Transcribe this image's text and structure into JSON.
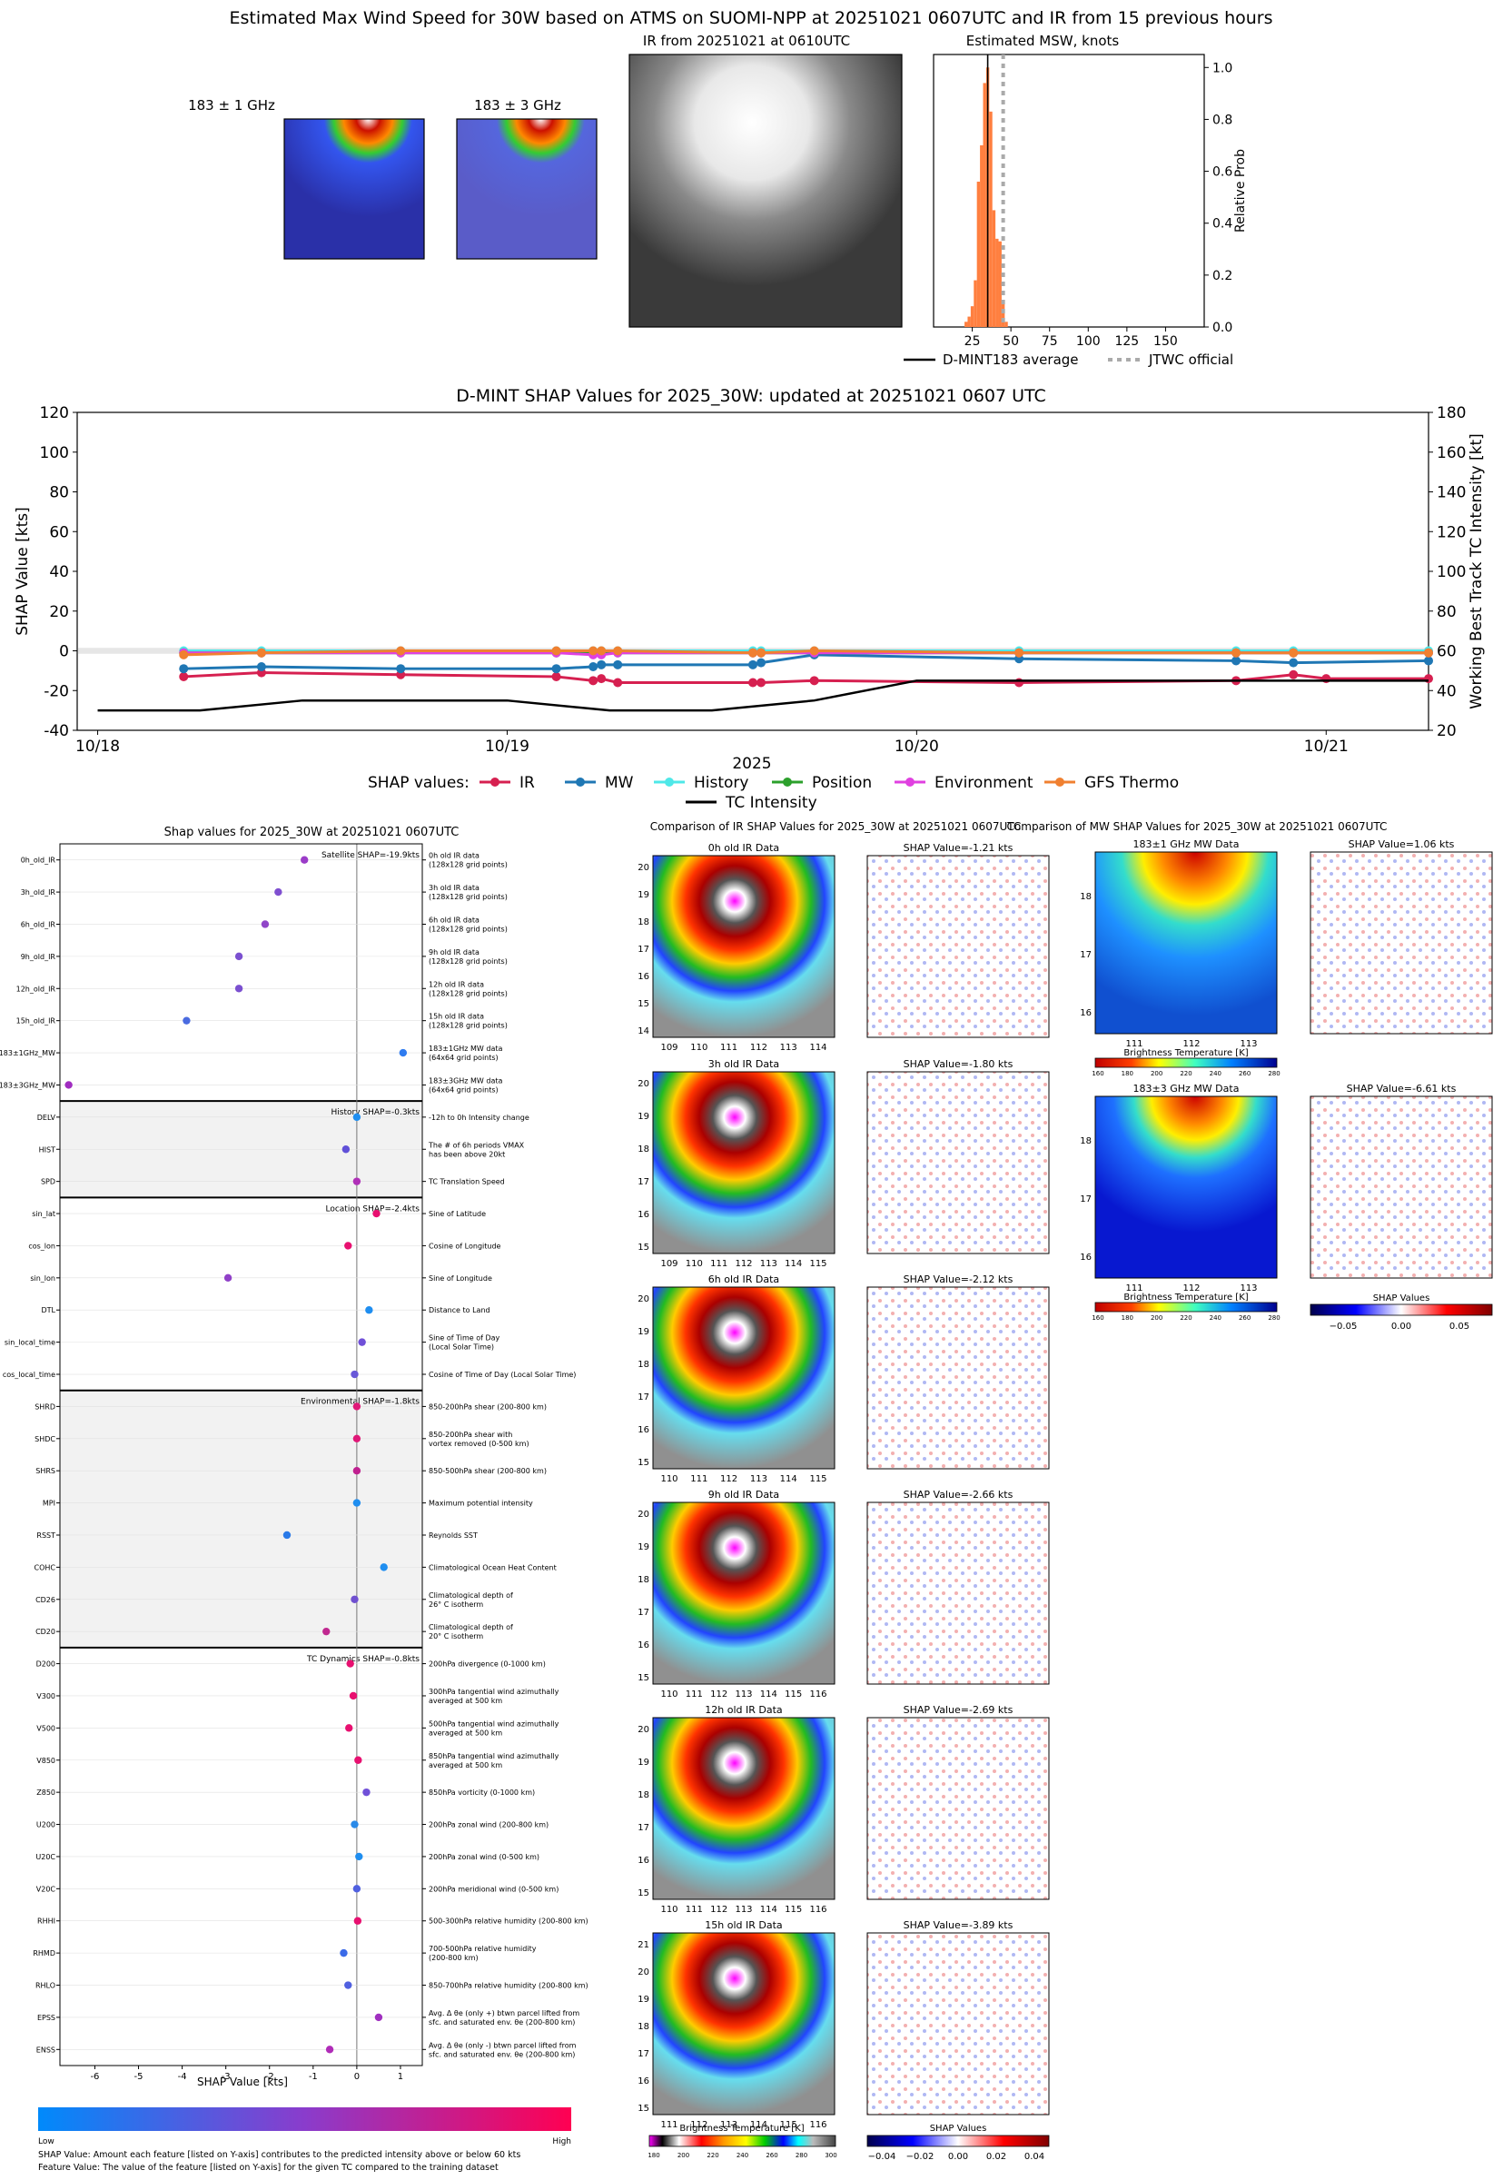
{
  "top": {
    "main_title": "Estimated Max Wind Speed for 30W based on ATMS on SUOMI-NPP at 20251021 0607UTC and IR from 15 previous hours",
    "mw1_title": "183 ± 1 GHz",
    "mw3_title": "183 ± 3 GHz",
    "ir_title": "IR from 20251021 at 0610UTC",
    "hist_title": "Estimated MSW, knots",
    "hist_ylabel": "Relative Prob",
    "legend": [
      "D-MINT183 average",
      "JTWC official"
    ],
    "colors": {
      "hist": "#ff7f3f",
      "avg": "#000000",
      "jtwc": "#aaaaaa"
    }
  },
  "timeline": {
    "title": "D-MINT SHAP Values for 2025_30W: updated at 20251021 0607 UTC",
    "ylabel_left": "SHAP Value [kts]",
    "ylabel_right": "Working Best Track TC Intensity [kt]",
    "xlabel": "2025",
    "legend_title": "SHAP values:",
    "colors": {
      "IR": "#d62050",
      "MW": "#1f77b4",
      "History": "#4ee8e8",
      "Position": "#2ca02c",
      "Environment": "#e040e0",
      "GFS Thermo": "#f08030",
      "TC Intensity": "#000000"
    }
  },
  "shap_panel": {
    "title": "Shap values for 2025_30W at 20251021 0607UTC",
    "xlabel": "SHAP Value [kts]",
    "groups": [
      {
        "label": "Satellite SHAP=-19.9kts"
      },
      {
        "label": "History SHAP=-0.3kts"
      },
      {
        "label": "Location SHAP=-2.4kts"
      },
      {
        "label": "Environmental SHAP=-1.8kts"
      },
      {
        "label": "TC Dynamics SHAP=-0.8kts"
      }
    ],
    "features": [
      {
        "name": "0h_old_IR",
        "desc": [
          "0h old IR data",
          "(128x128 grid points)"
        ],
        "value": -1.2,
        "color": "#9b3cc8"
      },
      {
        "name": "3h_old_IR",
        "desc": [
          "3h old IR data",
          "(128x128 grid points)"
        ],
        "value": -1.8,
        "color": "#7f4fd0"
      },
      {
        "name": "6h_old_IR",
        "desc": [
          "6h old IR data",
          "(128x128 grid points)"
        ],
        "value": -2.1,
        "color": "#9045c8"
      },
      {
        "name": "9h_old_IR",
        "desc": [
          "9h old IR data",
          "(128x128 grid points)"
        ],
        "value": -2.7,
        "color": "#7b50d0"
      },
      {
        "name": "12h_old_IR",
        "desc": [
          "12h old IR data",
          "(128x128 grid points)"
        ],
        "value": -2.7,
        "color": "#7b50d0"
      },
      {
        "name": "15h_old_IR",
        "desc": [
          "15h old IR data",
          "(128x128 grid points)"
        ],
        "value": -3.9,
        "color": "#4a6be0"
      },
      {
        "name": "183±1GHz_MW",
        "desc": [
          "183±1GHz MW data",
          "(64x64 grid points)"
        ],
        "value": 1.06,
        "color": "#2f7cf0"
      },
      {
        "name": "183±3GHz_MW",
        "desc": [
          "183±3GHz MW data",
          "(64x64 grid points)"
        ],
        "value": -6.6,
        "color": "#a02cc0"
      },
      {
        "name": "DELV",
        "desc": [
          "-12h to 0h Intensity change"
        ],
        "value": 0.0,
        "color": "#1f8ef0"
      },
      {
        "name": "HIST",
        "desc": [
          "The # of 6h periods VMAX",
          "has been above 20kt"
        ],
        "value": -0.25,
        "color": "#6050d8"
      },
      {
        "name": "SPD",
        "desc": [
          "TC Translation Speed"
        ],
        "value": 0.0,
        "color": "#b030b8"
      },
      {
        "name": "sin_lat",
        "desc": [
          "Sine of Latitude"
        ],
        "value": 0.45,
        "color": "#e81070"
      },
      {
        "name": "cos_lon",
        "desc": [
          "Cosine of Longitude"
        ],
        "value": -0.2,
        "color": "#e81070"
      },
      {
        "name": "sin_lon",
        "desc": [
          "Sine of Longitude"
        ],
        "value": -2.95,
        "color": "#9040c8"
      },
      {
        "name": "DTL",
        "desc": [
          "Distance to Land"
        ],
        "value": 0.28,
        "color": "#1f8ef0"
      },
      {
        "name": "sin_local_time",
        "desc": [
          "Sine of Time of Day",
          "(Local Solar Time)"
        ],
        "value": 0.12,
        "color": "#7050d8"
      },
      {
        "name": "cos_local_time",
        "desc": [
          "Cosine of Time of Day (Local Solar Time)"
        ],
        "value": -0.05,
        "color": "#6858d8"
      },
      {
        "name": "SHRD",
        "desc": [
          "850-200hPa shear (200-800 km)"
        ],
        "value": 0.0,
        "color": "#e01878"
      },
      {
        "name": "SHDC",
        "desc": [
          "850-200hPa shear with",
          "vortex removed (0-500 km)"
        ],
        "value": 0.0,
        "color": "#e01878"
      },
      {
        "name": "SHRS",
        "desc": [
          "850-500hPa shear (200-800 km)"
        ],
        "value": 0.0,
        "color": "#c02090"
      },
      {
        "name": "MPI",
        "desc": [
          "Maximum potential intensity"
        ],
        "value": 0.0,
        "color": "#1f8ef0"
      },
      {
        "name": "RSST",
        "desc": [
          "Reynolds SST"
        ],
        "value": -1.6,
        "color": "#2a7ae8"
      },
      {
        "name": "COHC",
        "desc": [
          "Climatological Ocean Heat Content"
        ],
        "value": 0.62,
        "color": "#1f8ef0"
      },
      {
        "name": "CD26",
        "desc": [
          "Climatological depth of",
          "26° C isotherm"
        ],
        "value": -0.05,
        "color": "#7050d0"
      },
      {
        "name": "CD20",
        "desc": [
          "Climatological depth of",
          "20° C isotherm"
        ],
        "value": -0.7,
        "color": "#c02890"
      },
      {
        "name": "D200",
        "desc": [
          "200hPa divergence (0-1000 km)"
        ],
        "value": -0.15,
        "color": "#e81070"
      },
      {
        "name": "V300",
        "desc": [
          "300hPa tangential wind azimuthally",
          "averaged at 500 km"
        ],
        "value": -0.08,
        "color": "#e81070"
      },
      {
        "name": "V500",
        "desc": [
          "500hPa tangential wind azimuthally",
          "averaged at 500 km"
        ],
        "value": -0.18,
        "color": "#e81070"
      },
      {
        "name": "V850",
        "desc": [
          "850hPa tangential wind azimuthally",
          "averaged at 500 km"
        ],
        "value": 0.03,
        "color": "#e81070"
      },
      {
        "name": "Z850",
        "desc": [
          "850hPa vorticity (0-1000 km)"
        ],
        "value": 0.22,
        "color": "#7050d8"
      },
      {
        "name": "U200",
        "desc": [
          "200hPa zonal wind (200-800 km)"
        ],
        "value": -0.05,
        "color": "#2a8ae8"
      },
      {
        "name": "U20C",
        "desc": [
          "200hPa zonal wind (0-500 km)"
        ],
        "value": 0.05,
        "color": "#1f8ef0"
      },
      {
        "name": "V20C",
        "desc": [
          "200hPa meridional wind (0-500 km)"
        ],
        "value": 0.0,
        "color": "#5060e0"
      },
      {
        "name": "RHHI",
        "desc": [
          "500-300hPa relative humidity (200-800 km)"
        ],
        "value": 0.02,
        "color": "#e81070"
      },
      {
        "name": "RHMD",
        "desc": [
          "700-500hPa relative humidity",
          "(200-800 km)"
        ],
        "value": -0.3,
        "color": "#3a6ae8"
      },
      {
        "name": "RHLO",
        "desc": [
          "850-700hPa relative humidity (200-800 km)"
        ],
        "value": -0.2,
        "color": "#5060e0"
      },
      {
        "name": "EPSS",
        "desc": [
          "Avg. Δ θe (only +) btwn parcel lifted from",
          "sfc. and saturated env. θe (200-800 km)"
        ],
        "value": 0.5,
        "color": "#a030c0"
      },
      {
        "name": "ENSS",
        "desc": [
          "Avg. Δ θe (only -) btwn parcel lifted from",
          "sfc. and saturated env. θe (200-800 km)"
        ],
        "value": -0.62,
        "color": "#b02cb8"
      }
    ],
    "cbar_low": "Low",
    "cbar_high": "High",
    "footnote1": "SHAP Value: Amount each feature [listed on Y-axis] contributes to the predicted intensity above or below 60 kts",
    "footnote2": "Feature Value: The value of the feature [listed on Y-axis] for the given TC compared to the training dataset"
  },
  "ir_compare": {
    "title": "Comparison of IR SHAP Values for 2025_30W at 20251021 0607UTC",
    "rows": [
      {
        "data_title": "0h old IR Data",
        "shap_title": "SHAP Value=-1.21 kts",
        "yticks": [
          "20",
          "19",
          "18",
          "17",
          "16",
          "15",
          "14"
        ],
        "xticks": [
          "109",
          "110",
          "111",
          "112",
          "113",
          "114"
        ]
      },
      {
        "data_title": "3h old IR Data",
        "shap_title": "SHAP Value=-1.80 kts",
        "yticks": [
          "20",
          "19",
          "18",
          "17",
          "16",
          "15"
        ],
        "xticks": [
          "109",
          "110",
          "111",
          "112",
          "113",
          "114",
          "115"
        ]
      },
      {
        "data_title": "6h old IR Data",
        "shap_title": "SHAP Value=-2.12 kts",
        "yticks": [
          "20",
          "19",
          "18",
          "17",
          "16",
          "15"
        ],
        "xticks": [
          "110",
          "111",
          "112",
          "113",
          "114",
          "115"
        ]
      },
      {
        "data_title": "9h old IR Data",
        "shap_title": "SHAP Value=-2.66 kts",
        "yticks": [
          "20",
          "19",
          "18",
          "17",
          "16",
          "15"
        ],
        "xticks": [
          "110",
          "111",
          "112",
          "113",
          "114",
          "115",
          "116"
        ]
      },
      {
        "data_title": "12h old IR Data",
        "shap_title": "SHAP Value=-2.69 kts",
        "yticks": [
          "20",
          "19",
          "18",
          "17",
          "16",
          "15"
        ],
        "xticks": [
          "110",
          "111",
          "112",
          "113",
          "114",
          "115",
          "116"
        ]
      },
      {
        "data_title": "15h old IR Data",
        "shap_title": "SHAP Value=-3.89 kts",
        "yticks": [
          "21",
          "20",
          "19",
          "18",
          "17",
          "16",
          "15"
        ],
        "xticks": [
          "111",
          "112",
          "113",
          "114",
          "115",
          "116"
        ]
      }
    ],
    "cbar_label": "Brightness Temperature [K]",
    "cbar_ticks": [
      "180",
      "200",
      "220",
      "240",
      "260",
      "280",
      "300"
    ],
    "shap_cbar_label": "SHAP Values",
    "shap_cbar_ticks": [
      "−0.04",
      "−0.02",
      "0.00",
      "0.02",
      "0.04"
    ]
  },
  "mw_compare": {
    "title": "Comparison of MW SHAP Values for 2025_30W at 20251021 0607UTC",
    "rows": [
      {
        "data_title": "183±1 GHz MW Data",
        "shap_title": "SHAP Value=1.06 kts"
      },
      {
        "data_title": "183±3 GHz MW Data",
        "shap_title": "SHAP Value=-6.61 kts"
      }
    ],
    "yticks": [
      "18",
      "17",
      "16"
    ],
    "xticks": [
      "111",
      "112",
      "113"
    ],
    "cbar_label": "Brightness Temperature [K]",
    "cbar_ticks": [
      "160",
      "180",
      "200",
      "220",
      "240",
      "260",
      "280"
    ],
    "shap_cbar_label": "SHAP Values",
    "shap_cbar_ticks": [
      "−0.05",
      "0.00",
      "0.05"
    ]
  },
  "chart_data": [
    {
      "type": "bar",
      "title": "Estimated MSW, knots",
      "ylabel": "Relative Prob",
      "xlim": [
        0,
        175
      ],
      "ylim": [
        0,
        1.05
      ],
      "xticks": [
        25,
        50,
        75,
        100,
        125,
        150
      ],
      "yticks": [
        0.0,
        0.2,
        0.4,
        0.6,
        0.8,
        1.0
      ],
      "bins_x": [
        20,
        22,
        24,
        26,
        28,
        30,
        32,
        34,
        36,
        38,
        40,
        42,
        44,
        46
      ],
      "values": [
        0.02,
        0.04,
        0.08,
        0.18,
        0.56,
        0.7,
        0.94,
        1.0,
        0.83,
        0.45,
        0.34,
        0.33,
        0.1,
        0.02
      ],
      "avg_line_x": 35,
      "jtwc_line_x": 45,
      "series_labels": [
        "D-MINT183 average",
        "JTWC official"
      ]
    },
    {
      "type": "line",
      "title": "D-MINT SHAP Values for 2025_30W: updated at 20251021 0607 UTC",
      "xlabel": "2025",
      "ylabel": "SHAP Value [kts]",
      "y2label": "Working Best Track TC Intensity [kt]",
      "xticks": [
        "10/18",
        "10/19",
        "10/20",
        "10/21"
      ],
      "yticks": [
        -40,
        -20,
        0,
        20,
        40,
        60,
        80,
        100,
        120
      ],
      "y2ticks": [
        20,
        40,
        60,
        80,
        100,
        120,
        140,
        160,
        180
      ],
      "xlim": [
        -0.05,
        3.25
      ],
      "ylim": [
        -40,
        120
      ],
      "y2lim": [
        20,
        180
      ],
      "series": [
        {
          "name": "IR",
          "x": [
            0.21,
            0.4,
            0.74,
            1.12,
            1.21,
            1.23,
            1.27,
            1.6,
            1.62,
            1.75,
            2.25,
            2.78,
            2.92,
            3.0,
            3.25
          ],
          "y": [
            -13,
            -11,
            -12,
            -13,
            -15,
            -14,
            -16,
            -16,
            -16,
            -15,
            -16,
            -15,
            -12,
            -14,
            -14
          ]
        },
        {
          "name": "MW",
          "x": [
            0.21,
            0.4,
            0.74,
            1.12,
            1.21,
            1.23,
            1.27,
            1.6,
            1.62,
            1.75,
            2.25,
            2.78,
            2.92,
            3.25
          ],
          "y": [
            -9,
            -8,
            -9,
            -9,
            -8,
            -7,
            -7,
            -7,
            -6,
            -2,
            -4,
            -5,
            -6,
            -5
          ]
        },
        {
          "name": "History",
          "x": [
            0.21,
            0.4,
            0.74,
            1.12,
            1.21,
            1.23,
            1.27,
            1.6,
            1.62,
            1.75,
            2.25,
            2.78,
            2.92,
            3.25
          ],
          "y": [
            0,
            0,
            0,
            0,
            0,
            0,
            0,
            0,
            0,
            0,
            0,
            0,
            0,
            0
          ]
        },
        {
          "name": "Position",
          "x": [
            0.21,
            0.4,
            0.74,
            1.12,
            1.21,
            1.23,
            1.27,
            1.6,
            1.62,
            1.75,
            2.25,
            2.78,
            2.92,
            3.25
          ],
          "y": [
            -1,
            -1,
            -1,
            -1,
            -1,
            -1,
            -1,
            -1,
            -1,
            -1,
            -1,
            -1,
            -1,
            -1
          ]
        },
        {
          "name": "Environment",
          "x": [
            0.21,
            0.4,
            0.74,
            1.12,
            1.21,
            1.23,
            1.27,
            1.6,
            1.62,
            1.75,
            2.25,
            2.78,
            2.92,
            3.25
          ],
          "y": [
            -1,
            -1,
            -1,
            -1,
            -2,
            -2,
            -1,
            -1,
            -1,
            -1,
            -1,
            -1,
            -1,
            -1
          ]
        },
        {
          "name": "GFS Thermo",
          "x": [
            0.21,
            0.4,
            0.74,
            1.12,
            1.21,
            1.23,
            1.27,
            1.6,
            1.62,
            1.75,
            2.25,
            2.78,
            2.92,
            3.25
          ],
          "y": [
            -2,
            -1,
            0,
            0,
            0,
            0,
            0,
            -1,
            -1,
            0,
            -1,
            -1,
            -1,
            -1
          ]
        },
        {
          "name": "TC Intensity",
          "axis": "right",
          "x": [
            0.0,
            0.25,
            0.5,
            1.0,
            1.25,
            1.5,
            1.75,
            2.0,
            2.5,
            3.0,
            3.25
          ],
          "y": [
            30,
            30,
            35,
            35,
            30,
            30,
            35,
            45,
            45,
            45,
            45
          ]
        }
      ]
    },
    {
      "type": "scatter",
      "title": "Shap values for 2025_30W at 20251021 0607UTC",
      "xlabel": "SHAP Value [kts]",
      "xlim": [
        -6.8,
        1.5
      ],
      "xticks": [
        -6,
        -5,
        -4,
        -3,
        -2,
        -1,
        0,
        1
      ]
    }
  ]
}
